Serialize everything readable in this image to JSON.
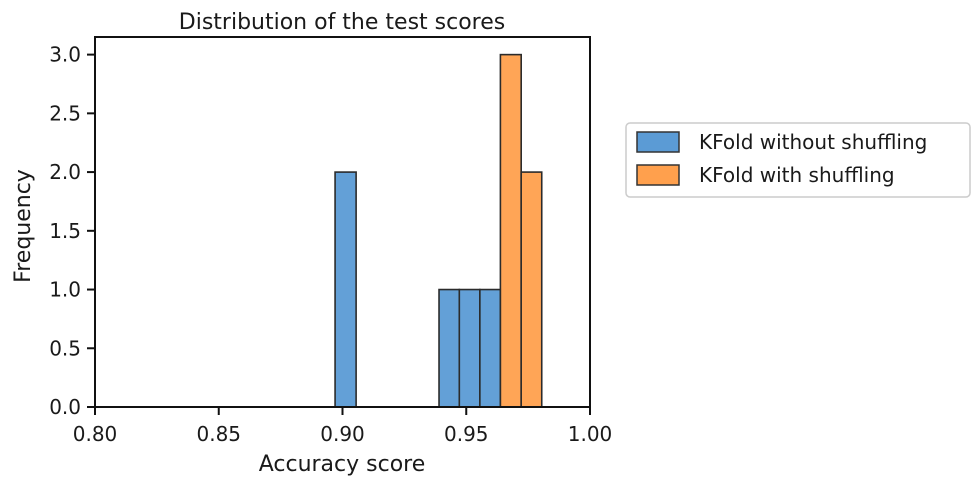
{
  "chart_data": {
    "type": "bar",
    "title": "Distribution of the test scores",
    "xlabel": "Accuracy score",
    "ylabel": "Frequency",
    "xlim": [
      0.8,
      1.0
    ],
    "ylim": [
      0.0,
      3.15
    ],
    "xticks": [
      {
        "value": 0.8,
        "label": "0.80"
      },
      {
        "value": 0.85,
        "label": "0.85"
      },
      {
        "value": 0.9,
        "label": "0.90"
      },
      {
        "value": 0.95,
        "label": "0.95"
      },
      {
        "value": 1.0,
        "label": "1.00"
      }
    ],
    "yticks": [
      {
        "value": 0.0,
        "label": "0.0"
      },
      {
        "value": 0.5,
        "label": "0.5"
      },
      {
        "value": 1.0,
        "label": "1.0"
      },
      {
        "value": 1.5,
        "label": "1.5"
      },
      {
        "value": 2.0,
        "label": "2.0"
      },
      {
        "value": 2.5,
        "label": "2.5"
      },
      {
        "value": 3.0,
        "label": "3.0"
      }
    ],
    "grid": false,
    "legend_position": "outside-right",
    "series": [
      {
        "name": "KFold without shuffling",
        "color": "#5b9bd5",
        "bins": [
          {
            "x0": 0.897,
            "x1": 0.9055,
            "count": 2
          },
          {
            "x0": 0.939,
            "x1": 0.9472,
            "count": 1
          },
          {
            "x0": 0.9472,
            "x1": 0.9555,
            "count": 1
          },
          {
            "x0": 0.9555,
            "x1": 0.9638,
            "count": 1
          }
        ]
      },
      {
        "name": "KFold with shuffling",
        "color": "#ffa04d",
        "bins": [
          {
            "x0": 0.9638,
            "x1": 0.9722,
            "count": 3
          },
          {
            "x0": 0.9722,
            "x1": 0.9805,
            "count": 2
          }
        ]
      }
    ]
  }
}
